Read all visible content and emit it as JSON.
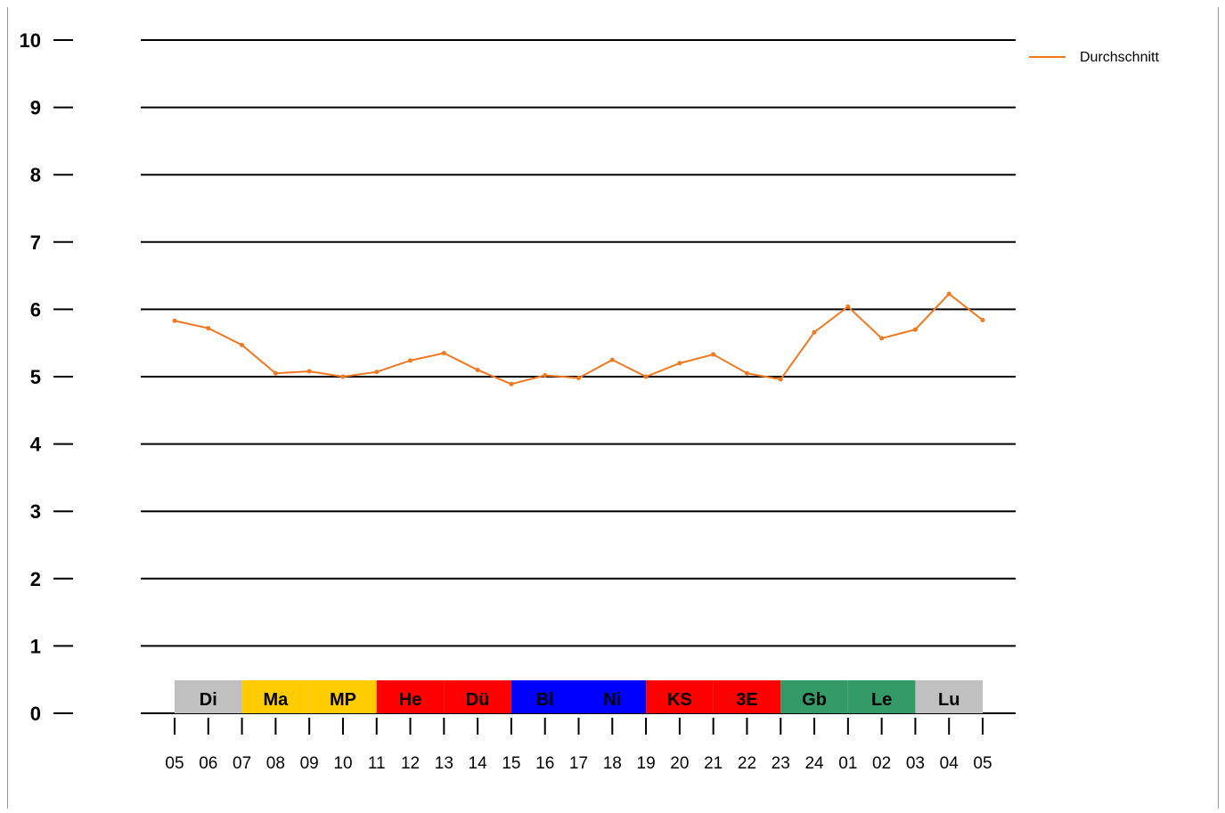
{
  "chart_data": {
    "type": "line",
    "title": "",
    "xlabel": "",
    "ylabel": "",
    "ylim": [
      0,
      10
    ],
    "yticks": [
      "0",
      "1",
      "2",
      "3",
      "4",
      "5",
      "6",
      "7",
      "8",
      "9",
      "10"
    ],
    "grid": true,
    "legend_position": "top-right",
    "x": [
      "05",
      "06",
      "07",
      "08",
      "09",
      "10",
      "11",
      "12",
      "13",
      "14",
      "15",
      "16",
      "17",
      "18",
      "19",
      "20",
      "21",
      "22",
      "23",
      "24",
      "01",
      "02",
      "03",
      "04",
      "05"
    ],
    "series": [
      {
        "name": "Durchschnitt",
        "color": "#f07820",
        "values": [
          5.83,
          5.72,
          5.47,
          5.05,
          5.08,
          5.0,
          5.07,
          5.24,
          5.35,
          5.1,
          4.89,
          5.02,
          4.98,
          5.25,
          5.0,
          5.2,
          5.33,
          5.05,
          4.96,
          5.66,
          6.04,
          5.57,
          5.7,
          6.23,
          5.84
        ]
      }
    ],
    "bands": [
      {
        "label": "Di",
        "color": "#c0c0c0"
      },
      {
        "label": "Ma",
        "color": "#ffcc00"
      },
      {
        "label": "MP",
        "color": "#ffcc00"
      },
      {
        "label": "He",
        "color": "#ff0000"
      },
      {
        "label": "Dü",
        "color": "#ff0000"
      },
      {
        "label": "Bl",
        "color": "#0000ff"
      },
      {
        "label": "Ni",
        "color": "#0000ff"
      },
      {
        "label": "KS",
        "color": "#ff0000"
      },
      {
        "label": "3E",
        "color": "#ff0000"
      },
      {
        "label": "Gb",
        "color": "#339966"
      },
      {
        "label": "Le",
        "color": "#339966"
      },
      {
        "label": "Lu",
        "color": "#c0c0c0"
      }
    ]
  }
}
